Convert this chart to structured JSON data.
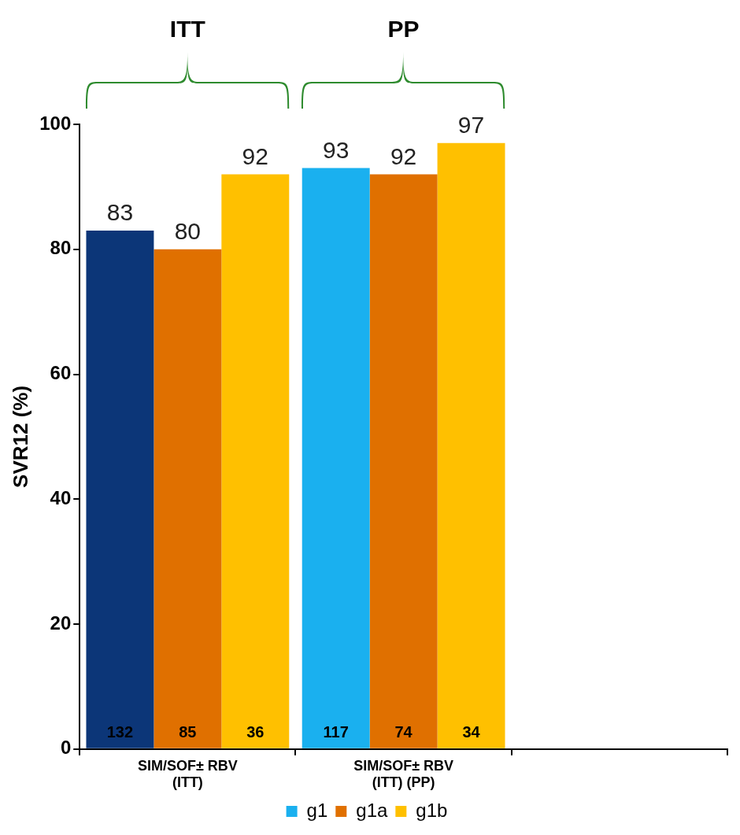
{
  "chart_data": {
    "type": "bar",
    "ylabel": "SVR12 (%)",
    "categories": [
      "SIM/SOF± RBV (ITT)",
      "SIM/SOF± RBV (ITT) (PP)",
      null
    ],
    "series": [
      {
        "name": "g1",
        "color": "#1ab0ef",
        "colors": [
          "#0c3678",
          "#1ab0ef",
          null
        ],
        "values": [
          83,
          93,
          null
        ]
      },
      {
        "name": "g1a",
        "color": "#e07000",
        "values": [
          80,
          92,
          null
        ]
      },
      {
        "name": "g1b",
        "color": "#ffc000",
        "values": [
          92,
          97,
          null
        ]
      }
    ],
    "ylim": [
      0,
      100
    ],
    "yticks": [
      0,
      20,
      40,
      60,
      80,
      100
    ],
    "grid": false,
    "legend": "bottom",
    "data_labels": true,
    "annotations": [
      "ITT",
      "PP",
      "132",
      "85",
      "36",
      "117",
      "74",
      "34"
    ]
  }
}
